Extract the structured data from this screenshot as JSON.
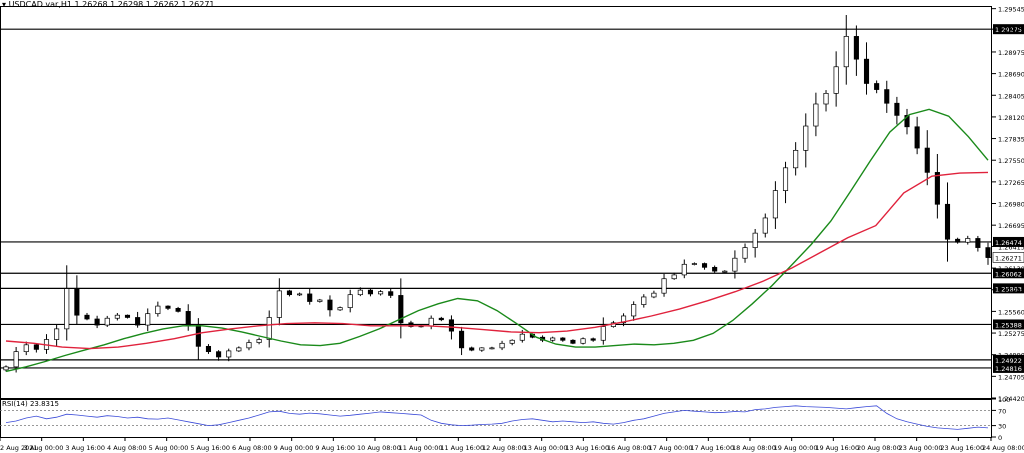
{
  "window": {
    "symbol_label": "USDCAD.var,H1",
    "ohlc_label": "1.26268 1.26298 1.26262 1.26271",
    "dropdown_icon": "triangle-down-icon"
  },
  "chart_data": [
    {
      "type": "candlestick",
      "title": "USDCAD.var,H1 1.26268 1.26298 1.26262 1.26271",
      "ylim": [
        1.2442,
        1.2958
      ],
      "price_ticks": [
        "1.29545",
        "1.29275",
        "1.28975",
        "1.28690",
        "1.28405",
        "1.28120",
        "1.27835",
        "1.27550",
        "1.27265",
        "1.26980",
        "1.26695",
        "1.26415",
        "1.26271",
        "1.26130",
        "1.25845",
        "1.25560",
        "1.25275",
        "1.24990",
        "1.24705",
        "1.24420"
      ],
      "time_labels": [
        "2 Aug 2021",
        "3 Aug 00:00",
        "3 Aug 16:00",
        "4 Aug 08:00",
        "5 Aug 00:00",
        "5 Aug 16:00",
        "6 Aug 08:00",
        "9 Aug 00:00",
        "9 Aug 16:00",
        "10 Aug 08:00",
        "11 Aug 00:00",
        "11 Aug 16:00",
        "12 Aug 08:00",
        "13 Aug 00:00",
        "13 Aug 16:00",
        "16 Aug 08:00",
        "17 Aug 00:00",
        "17 Aug 16:00",
        "18 Aug 08:00",
        "19 Aug 00:00",
        "19 Aug 16:00",
        "20 Aug 08:00",
        "23 Aug 00:00",
        "23 Aug 16:00",
        "24 Aug 08:00"
      ],
      "support_resistance_levels": [
        1.29275,
        1.26474,
        1.26062,
        1.25863,
        1.25388,
        1.24922,
        1.24816
      ],
      "level_labels": [
        "1.29275",
        "1.26474",
        "1.26062",
        "1.25863",
        "1.25388",
        "1.24922",
        "1.24816"
      ],
      "current_price_label": "1.26271",
      "series": [
        {
          "name": "",
          "kind": "close",
          "values": [
            1.2483,
            1.2503,
            1.2512,
            1.2506,
            1.2519,
            1.2533,
            1.2586,
            1.2551,
            1.2546,
            1.2538,
            1.2547,
            1.2551,
            1.2548,
            1.2538,
            1.2553,
            1.2563,
            1.256,
            1.2556,
            1.2538,
            1.251,
            1.2503,
            1.2496,
            1.2504,
            1.2508,
            1.2515,
            1.2519,
            1.2548,
            1.2583,
            1.2578,
            1.2579,
            1.2569,
            1.2571,
            1.2558,
            1.2561,
            1.2578,
            1.2584,
            1.2579,
            1.2582,
            1.2577,
            1.2541,
            1.2536,
            1.2537,
            1.2547,
            1.2545,
            1.253,
            1.2508,
            1.2505,
            1.2508,
            1.2508,
            1.2514,
            1.2518,
            1.2526,
            1.2522,
            1.2518,
            1.2521,
            1.2518,
            1.2514,
            1.252,
            1.2518,
            1.2536,
            1.2541,
            1.255,
            1.2565,
            1.2575,
            1.258,
            1.2599,
            1.2604,
            1.2618,
            1.2619,
            1.2614,
            1.2609,
            1.2609,
            1.2626,
            1.264,
            1.2659,
            1.2679,
            1.2715,
            1.2745,
            1.2768,
            1.28,
            1.2829,
            1.2843,
            1.2878,
            1.2918,
            1.2888,
            1.2856,
            1.2848,
            1.283,
            1.2814,
            1.2799,
            1.2771,
            1.2739,
            1.2697,
            1.2651,
            1.2647,
            1.2652,
            1.264,
            1.2627
          ]
        },
        {
          "name": "",
          "kind": "moving-average",
          "color": "#1a8a1a",
          "values": [
            1.2477,
            1.2483,
            1.249,
            1.2498,
            1.2505,
            1.2512,
            1.252,
            1.2527,
            1.2533,
            1.2537,
            1.2537,
            1.2534,
            1.2529,
            1.2523,
            1.2517,
            1.2512,
            1.2511,
            1.2514,
            1.2523,
            1.2533,
            1.2545,
            1.2557,
            1.2566,
            1.2573,
            1.257,
            1.2557,
            1.254,
            1.2522,
            1.2513,
            1.2509,
            1.2509,
            1.2511,
            1.2513,
            1.2512,
            1.2514,
            1.2518,
            1.2527,
            1.2544,
            1.2566,
            1.259,
            1.2617,
            1.2644,
            1.2675,
            1.2714,
            1.2754,
            1.2792,
            1.2815,
            1.2822,
            1.2813,
            1.2786,
            1.2755
          ]
        },
        {
          "name": "",
          "kind": "moving-average",
          "color": "#e0223c",
          "values": [
            1.2517,
            1.2514,
            1.2509,
            1.2507,
            1.2509,
            1.2514,
            1.252,
            1.2528,
            1.2533,
            1.2537,
            1.254,
            1.2541,
            1.254,
            1.2537,
            1.2537,
            1.2537,
            1.2535,
            1.2532,
            1.2529,
            1.2528,
            1.253,
            1.2535,
            1.2542,
            1.255,
            1.2559,
            1.257,
            1.2582,
            1.2596,
            1.2613,
            1.2633,
            1.2653,
            1.2669,
            1.2712,
            1.2734,
            1.2738,
            1.2739
          ]
        }
      ]
    },
    {
      "type": "line",
      "title": "RSI(14) 23.8315",
      "ylim": [
        0,
        100
      ],
      "ticks": [
        "100",
        "70",
        "30",
        "0"
      ],
      "levels": [
        70,
        30
      ],
      "series": [
        {
          "name": "RSI(14)",
          "color": "#3a4ad8",
          "values": [
            38,
            42,
            50,
            55,
            48,
            52,
            60,
            58,
            55,
            52,
            56,
            54,
            50,
            52,
            48,
            47,
            50,
            45,
            40,
            35,
            30,
            32,
            38,
            44,
            50,
            58,
            66,
            68,
            62,
            60,
            63,
            61,
            58,
            55,
            57,
            60,
            63,
            66,
            64,
            62,
            60,
            58,
            44,
            36,
            32,
            30,
            31,
            33,
            34,
            36,
            42,
            46,
            48,
            44,
            40,
            42,
            40,
            38,
            40,
            36,
            34,
            38,
            44,
            48,
            55,
            62,
            66,
            70,
            68,
            66,
            64,
            65,
            67,
            66,
            72,
            74,
            78,
            80,
            82,
            80,
            79,
            78,
            76,
            74,
            77,
            80,
            82,
            62,
            48,
            40,
            34,
            28,
            24,
            22,
            20,
            23,
            26,
            24
          ]
        }
      ]
    }
  ]
}
